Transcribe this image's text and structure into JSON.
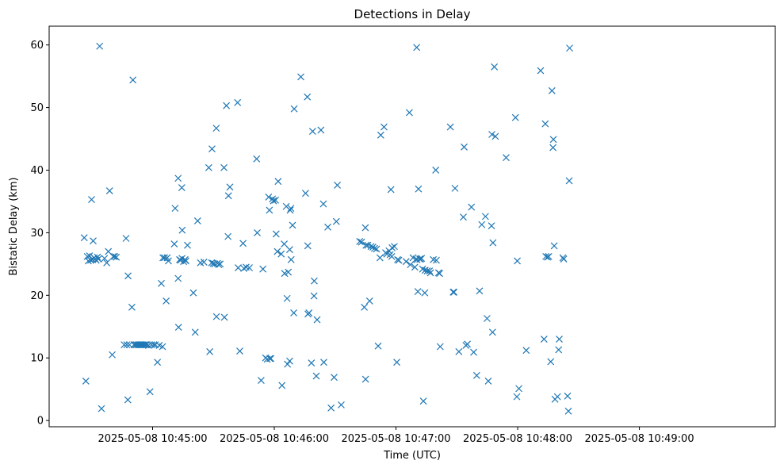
{
  "chart_data": {
    "type": "scatter",
    "title": "Detections in Delay",
    "xlabel": "Time (UTC)",
    "ylabel": "Bistatic Delay (km)",
    "marker": "x",
    "color": "#1f77b4",
    "x_unit": "seconds since 2025-05-08 10:44:00",
    "xlim": [
      9,
      367
    ],
    "ylim": [
      -1,
      63
    ],
    "xticks": [
      {
        "value": 60,
        "label": "2025-05-08 10:45:00"
      },
      {
        "value": 120,
        "label": "2025-05-08 10:46:00"
      },
      {
        "value": 180,
        "label": "2025-05-08 10:47:00"
      },
      {
        "value": 240,
        "label": "2025-05-08 10:48:00"
      },
      {
        "value": 300,
        "label": "2025-05-08 10:49:00"
      }
    ],
    "yticks": [
      0,
      10,
      20,
      30,
      40,
      50,
      60
    ],
    "points": [
      [
        26.3,
        29.2
      ],
      [
        27.1,
        6.3
      ],
      [
        27.8,
        26.2
      ],
      [
        28.3,
        25.5
      ],
      [
        28.9,
        26.3
      ],
      [
        29.5,
        25.6
      ],
      [
        29.9,
        35.3
      ],
      [
        30.4,
        25.7
      ],
      [
        30.7,
        28.7
      ],
      [
        31.2,
        26.0
      ],
      [
        31.7,
        25.8
      ],
      [
        32.2,
        25.6
      ],
      [
        32.8,
        26.1
      ],
      [
        33.3,
        25.8
      ],
      [
        33.9,
        59.8
      ],
      [
        34.8,
        1.9
      ],
      [
        36.3,
        25.9
      ],
      [
        37.4,
        25.2
      ],
      [
        38.2,
        27.0
      ],
      [
        38.8,
        36.7
      ],
      [
        40.1,
        10.5
      ],
      [
        40.6,
        26.2
      ],
      [
        41.3,
        26.2
      ],
      [
        42.1,
        26.1
      ],
      [
        46.0,
        12.1
      ],
      [
        46.9,
        29.1
      ],
      [
        47.3,
        12.1
      ],
      [
        47.8,
        3.3
      ],
      [
        47.9,
        23.1
      ],
      [
        48.6,
        12.1
      ],
      [
        49.8,
        18.1
      ],
      [
        50.3,
        54.4
      ],
      [
        50.8,
        12.1
      ],
      [
        51.5,
        12.1
      ],
      [
        52.1,
        12.1
      ],
      [
        52.8,
        12.1
      ],
      [
        53.4,
        12.1
      ],
      [
        54.0,
        12.1
      ],
      [
        54.6,
        12.1
      ],
      [
        55.2,
        12.1
      ],
      [
        55.8,
        12.1
      ],
      [
        56.5,
        12.1
      ],
      [
        57.1,
        12.1
      ],
      [
        58.0,
        12.0
      ],
      [
        58.7,
        4.6
      ],
      [
        59.5,
        12.1
      ],
      [
        60.6,
        12.1
      ],
      [
        61.4,
        12.1
      ],
      [
        62.4,
        9.3
      ],
      [
        63.3,
        12.0
      ],
      [
        64.3,
        21.9
      ],
      [
        64.9,
        11.8
      ],
      [
        65.1,
        26.0
      ],
      [
        65.9,
        26.0
      ],
      [
        66.7,
        19.1
      ],
      [
        67.2,
        26.0
      ],
      [
        67.8,
        25.5
      ],
      [
        70.7,
        28.2
      ],
      [
        71.1,
        33.9
      ],
      [
        72.6,
        38.7
      ],
      [
        72.6,
        22.7
      ],
      [
        72.8,
        14.9
      ],
      [
        73.3,
        25.7
      ],
      [
        73.8,
        25.6
      ],
      [
        74.5,
        25.9
      ],
      [
        74.4,
        37.2
      ],
      [
        74.6,
        30.4
      ],
      [
        75.3,
        25.4
      ],
      [
        76.0,
        25.7
      ],
      [
        76.4,
        25.5
      ],
      [
        77.2,
        28.0
      ],
      [
        80.1,
        20.4
      ],
      [
        81.0,
        14.1
      ],
      [
        82.2,
        31.9
      ],
      [
        83.6,
        25.2
      ],
      [
        85.3,
        25.3
      ],
      [
        87.7,
        40.4
      ],
      [
        88.2,
        11.0
      ],
      [
        89.3,
        43.4
      ],
      [
        89.1,
        25.2
      ],
      [
        89.9,
        25.1
      ],
      [
        90.6,
        25.0
      ],
      [
        91.4,
        46.7
      ],
      [
        91.5,
        16.6
      ],
      [
        92.0,
        25.1
      ],
      [
        92.6,
        24.9
      ],
      [
        93.3,
        25.0
      ],
      [
        95.2,
        40.4
      ],
      [
        95.4,
        16.5
      ],
      [
        96.4,
        50.3
      ],
      [
        97.2,
        29.4
      ],
      [
        97.4,
        35.9
      ],
      [
        98.1,
        37.3
      ],
      [
        101.9,
        50.8
      ],
      [
        102.2,
        24.4
      ],
      [
        103.0,
        11.1
      ],
      [
        104.6,
        28.3
      ],
      [
        105.0,
        24.3
      ],
      [
        106.1,
        24.5
      ],
      [
        107.7,
        24.4
      ],
      [
        111.3,
        41.8
      ],
      [
        111.6,
        30.0
      ],
      [
        113.5,
        6.4
      ],
      [
        114.4,
        24.2
      ],
      [
        115.7,
        10.0
      ],
      [
        116.5,
        9.8
      ],
      [
        117.2,
        35.7
      ],
      [
        117.6,
        33.6
      ],
      [
        117.8,
        9.9
      ],
      [
        118.3,
        9.9
      ],
      [
        119.1,
        35.4
      ],
      [
        119.6,
        35.1
      ],
      [
        120.6,
        35.2
      ],
      [
        120.9,
        29.8
      ],
      [
        121.5,
        27.0
      ],
      [
        121.9,
        38.2
      ],
      [
        123.4,
        26.6
      ],
      [
        123.8,
        5.6
      ],
      [
        124.9,
        28.2
      ],
      [
        125.1,
        23.5
      ],
      [
        125.9,
        34.2
      ],
      [
        126.3,
        19.5
      ],
      [
        126.5,
        9.0
      ],
      [
        126.9,
        23.7
      ],
      [
        127.6,
        27.3
      ],
      [
        127.6,
        9.5
      ],
      [
        127.8,
        33.6
      ],
      [
        128.2,
        33.9
      ],
      [
        128.3,
        25.7
      ],
      [
        129.0,
        31.2
      ],
      [
        129.6,
        17.2
      ],
      [
        129.8,
        49.8
      ],
      [
        133.1,
        54.9
      ],
      [
        135.4,
        36.3
      ],
      [
        136.3,
        51.7
      ],
      [
        136.5,
        27.9
      ],
      [
        136.6,
        17.0
      ],
      [
        137.1,
        17.2
      ],
      [
        138.3,
        9.2
      ],
      [
        138.9,
        46.2
      ],
      [
        139.6,
        19.9
      ],
      [
        139.7,
        22.3
      ],
      [
        140.7,
        7.1
      ],
      [
        141.1,
        16.1
      ],
      [
        143.0,
        46.4
      ],
      [
        144.2,
        34.6
      ],
      [
        144.4,
        9.3
      ],
      [
        146.4,
        30.9
      ],
      [
        148.0,
        2.0
      ],
      [
        149.5,
        6.9
      ],
      [
        150.6,
        31.8
      ],
      [
        151.1,
        37.6
      ],
      [
        153.0,
        2.5
      ],
      [
        162.1,
        28.6
      ],
      [
        163.0,
        28.5
      ],
      [
        164.4,
        18.1
      ],
      [
        164.9,
        30.8
      ],
      [
        165.0,
        6.6
      ],
      [
        165.2,
        28.0
      ],
      [
        166.1,
        28.0
      ],
      [
        167.0,
        19.1
      ],
      [
        167.7,
        27.8
      ],
      [
        168.6,
        27.7
      ],
      [
        169.4,
        27.5
      ],
      [
        170.4,
        27.4
      ],
      [
        171.2,
        11.9
      ],
      [
        172.1,
        26.0
      ],
      [
        172.5,
        45.6
      ],
      [
        174.1,
        46.9
      ],
      [
        174.9,
        26.8
      ],
      [
        175.5,
        26.6
      ],
      [
        176.6,
        27.1
      ],
      [
        177.1,
        26.5
      ],
      [
        177.5,
        36.9
      ],
      [
        177.9,
        26.2
      ],
      [
        178.1,
        27.6
      ],
      [
        179.2,
        27.8
      ],
      [
        180.4,
        9.3
      ],
      [
        180.8,
        25.7
      ],
      [
        181.4,
        25.6
      ],
      [
        185.0,
        25.4
      ],
      [
        186.6,
        49.2
      ],
      [
        187.1,
        24.9
      ],
      [
        188.4,
        26.0
      ],
      [
        189.3,
        24.5
      ],
      [
        189.9,
        25.8
      ],
      [
        190.2,
        59.6
      ],
      [
        190.4,
        25.7
      ],
      [
        190.8,
        20.6
      ],
      [
        191.1,
        37.0
      ],
      [
        191.7,
        25.8
      ],
      [
        192.1,
        25.8
      ],
      [
        192.6,
        25.9
      ],
      [
        193.1,
        24.2
      ],
      [
        193.5,
        3.1
      ],
      [
        194.2,
        20.4
      ],
      [
        194.4,
        24.0
      ],
      [
        195.4,
        23.9
      ],
      [
        196.5,
        23.9
      ],
      [
        197.0,
        23.6
      ],
      [
        198.4,
        25.7
      ],
      [
        199.6,
        40.0
      ],
      [
        199.9,
        25.6
      ],
      [
        201.0,
        23.6
      ],
      [
        201.5,
        23.5
      ],
      [
        201.8,
        11.8
      ],
      [
        206.8,
        46.9
      ],
      [
        208.2,
        20.5
      ],
      [
        208.6,
        20.5
      ],
      [
        209.1,
        37.1
      ],
      [
        211.0,
        11.0
      ],
      [
        213.2,
        32.5
      ],
      [
        213.6,
        43.7
      ],
      [
        214.5,
        12.0
      ],
      [
        215.2,
        12.2
      ],
      [
        217.2,
        34.1
      ],
      [
        218.3,
        10.9
      ],
      [
        219.8,
        7.2
      ],
      [
        221.2,
        20.7
      ],
      [
        222.3,
        31.3
      ],
      [
        224.1,
        32.6
      ],
      [
        224.9,
        16.3
      ],
      [
        225.5,
        6.3
      ],
      [
        227.1,
        31.1
      ],
      [
        227.3,
        45.7
      ],
      [
        227.8,
        28.4
      ],
      [
        227.6,
        14.1
      ],
      [
        228.5,
        56.5
      ],
      [
        229.0,
        45.4
      ],
      [
        234.3,
        42.0
      ],
      [
        238.9,
        48.4
      ],
      [
        239.8,
        25.5
      ],
      [
        239.6,
        3.8
      ],
      [
        240.6,
        5.1
      ],
      [
        244.2,
        11.2
      ],
      [
        251.3,
        55.9
      ],
      [
        253.0,
        13.0
      ],
      [
        253.6,
        47.4
      ],
      [
        253.9,
        26.2
      ],
      [
        254.7,
        26.1
      ],
      [
        255.3,
        26.2
      ],
      [
        256.3,
        9.4
      ],
      [
        256.9,
        52.7
      ],
      [
        257.4,
        43.6
      ],
      [
        257.6,
        44.9
      ],
      [
        258.0,
        27.9
      ],
      [
        258.4,
        3.4
      ],
      [
        259.6,
        3.8
      ],
      [
        260.2,
        11.3
      ],
      [
        260.5,
        13.0
      ],
      [
        262.3,
        26.0
      ],
      [
        262.7,
        25.8
      ],
      [
        264.6,
        3.9
      ],
      [
        265.0,
        1.5
      ],
      [
        265.6,
        59.5
      ],
      [
        265.4,
        38.3
      ]
    ]
  }
}
